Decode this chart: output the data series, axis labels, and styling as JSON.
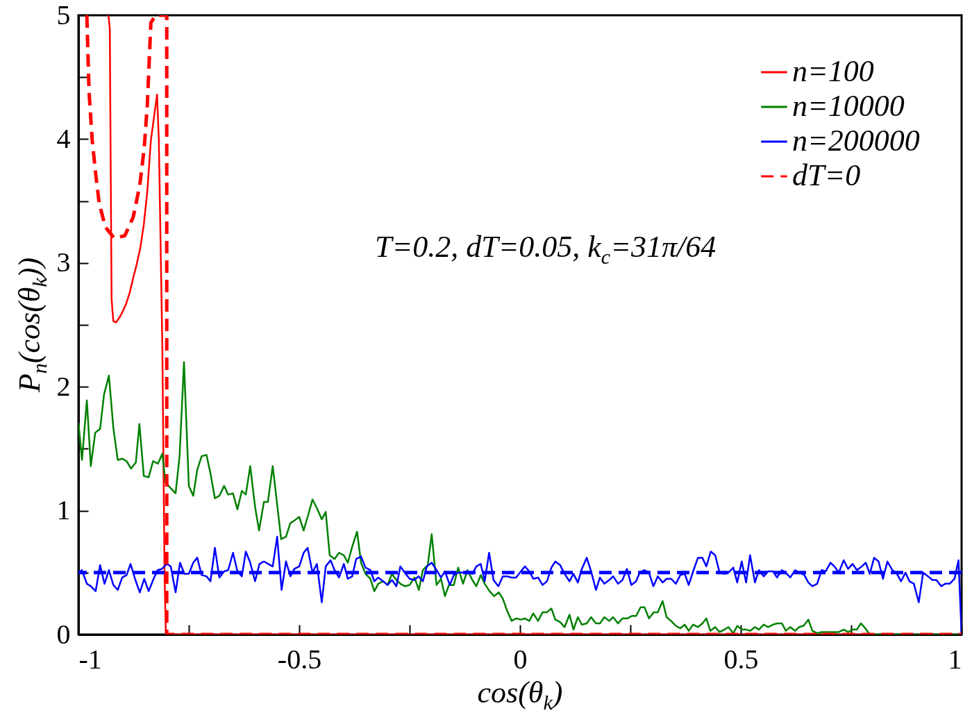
{
  "chart_data": {
    "type": "line",
    "xlabel": "cos(θ$_{k}$)",
    "ylabel": "P$_{n}$(cos(θ$_{k}$))",
    "annotations": [
      "T=0.2, dT=0.05, k$_{c}$=31π/64"
    ],
    "xlim": [
      -1,
      1
    ],
    "ylim": [
      0,
      5
    ],
    "xticks": [
      -1,
      {
        "value": -0.75,
        "label": null
      },
      -0.5,
      {
        "value": -0.25,
        "label": null
      },
      0,
      {
        "value": 0.25,
        "label": null
      },
      0.5,
      {
        "value": 0.75,
        "label": null
      },
      1
    ],
    "yticks": [
      0,
      {
        "value": 0.5,
        "label": null
      },
      1,
      {
        "value": 1.5,
        "label": null
      },
      2,
      {
        "value": 2.5,
        "label": null
      },
      3,
      {
        "value": 3.5,
        "label": null
      },
      4,
      {
        "value": 4.5,
        "label": null
      },
      5
    ],
    "legend": "top right",
    "ref_lines": [
      {
        "axis": "y",
        "value": 0.5,
        "color": "#0000ff",
        "line_style": "dashed"
      }
    ],
    "series": [
      {
        "name": "n=100",
        "color": "#ff0000",
        "line_style": "solid",
        "x": [
          -0.932,
          -0.929,
          -0.925,
          -0.921,
          -0.915,
          -0.907,
          -0.901,
          -0.892,
          -0.884,
          -0.876,
          -0.868,
          -0.86,
          -0.852,
          -0.844,
          -0.836,
          -0.822,
          -0.818,
          -0.81,
          -0.805,
          -0.802,
          1
        ],
        "values": [
          5,
          4.89,
          2.71,
          2.53,
          2.52,
          2.56,
          2.6,
          2.67,
          2.76,
          2.88,
          2.99,
          3.12,
          3.31,
          3.58,
          3.99,
          4.36,
          4.0,
          2.32,
          0.47,
          0,
          0
        ]
      },
      {
        "name": "n=10000",
        "color": "#008000",
        "line_style": "solid",
        "x": [
          -1.0,
          -0.992,
          -0.981,
          -0.972,
          -0.962,
          -0.951,
          -0.942,
          -0.931,
          -0.921,
          -0.911,
          -0.901,
          -0.891,
          -0.881,
          -0.87,
          -0.862,
          -0.852,
          -0.841,
          -0.831,
          -0.82,
          -0.81,
          -0.803,
          -0.791,
          -0.78,
          -0.771,
          -0.761,
          -0.75,
          -0.74,
          -0.731,
          -0.721,
          -0.71,
          -0.701,
          -0.691,
          -0.681,
          -0.67,
          -0.661,
          -0.65,
          -0.64,
          -0.63,
          -0.621,
          -0.611,
          -0.6,
          -0.591,
          -0.58,
          -0.571,
          -0.56,
          -0.55,
          -0.541,
          -0.53,
          -0.52,
          -0.511,
          -0.5,
          -0.49,
          -0.481,
          -0.47,
          -0.46,
          -0.449,
          -0.44,
          -0.431,
          -0.42,
          -0.41,
          -0.399,
          -0.39,
          -0.38,
          -0.369,
          -0.36,
          -0.35,
          -0.339,
          -0.33,
          -0.321,
          -0.31,
          -0.3,
          -0.29,
          -0.28,
          -0.271,
          -0.261,
          -0.25,
          -0.239,
          -0.229,
          -0.22,
          -0.209,
          -0.2,
          -0.189,
          -0.179,
          -0.17,
          -0.161,
          -0.15,
          -0.14,
          -0.129,
          -0.119,
          -0.108,
          -0.099,
          -0.089,
          -0.08,
          -0.069,
          -0.059,
          -0.048,
          -0.039,
          -0.029,
          -0.019,
          -0.009,
          0.002,
          0.011,
          0.021,
          0.03,
          0.041,
          0.051,
          0.061,
          0.071,
          0.08,
          0.091,
          0.101,
          0.112,
          0.121,
          0.131,
          0.14,
          0.151,
          0.161,
          0.172,
          0.181,
          0.191,
          0.202,
          0.211,
          0.222,
          0.232,
          0.243,
          0.253,
          0.263,
          0.273,
          0.282,
          0.292,
          0.303,
          0.312,
          0.323,
          0.332,
          0.342,
          0.353,
          0.363,
          0.373,
          0.382,
          0.392,
          0.403,
          0.413,
          0.422,
          0.431,
          0.442,
          0.452,
          0.463,
          0.472,
          0.483,
          0.492,
          0.502,
          0.512,
          0.521,
          0.532,
          0.541,
          0.552,
          0.562,
          0.573,
          0.582,
          0.593,
          0.602,
          0.612,
          0.623,
          0.632,
          0.642,
          0.653,
          0.662,
          0.673,
          0.683,
          0.722,
          0.733,
          0.743,
          0.753,
          0.763,
          0.772,
          0.782,
          0.792,
          1.0
        ],
        "values": [
          1.71,
          1.41,
          1.89,
          1.36,
          1.63,
          1.66,
          1.94,
          2.09,
          1.67,
          1.41,
          1.42,
          1.4,
          1.34,
          1.39,
          1.7,
          1.28,
          1.27,
          1.4,
          1.38,
          1.46,
          1.23,
          1.18,
          1.14,
          1.44,
          2.2,
          1.2,
          1.12,
          1.33,
          1.44,
          1.45,
          1.3,
          1.1,
          1.12,
          1.2,
          1.13,
          1.14,
          1.01,
          1.16,
          1.13,
          1.36,
          1.03,
          0.84,
          1.07,
          1.07,
          1.36,
          1.05,
          0.77,
          0.79,
          0.9,
          0.92,
          0.95,
          0.84,
          0.95,
          1.09,
          1.02,
          0.93,
          0.99,
          0.64,
          0.61,
          0.66,
          0.64,
          0.58,
          0.71,
          0.83,
          0.58,
          0.49,
          0.45,
          0.35,
          0.41,
          0.43,
          0.4,
          0.49,
          0.44,
          0.41,
          0.39,
          0.4,
          0.46,
          0.36,
          0.52,
          0.56,
          0.81,
          0.4,
          0.45,
          0.31,
          0.4,
          0.4,
          0.54,
          0.41,
          0.52,
          0.44,
          0.39,
          0.48,
          0.41,
          0.35,
          0.31,
          0.34,
          0.29,
          0.19,
          0.11,
          0.13,
          0.12,
          0.13,
          0.11,
          0.17,
          0.11,
          0.18,
          0.18,
          0.21,
          0.12,
          0.1,
          0.06,
          0.16,
          0.04,
          0.14,
          0.08,
          0.09,
          0.14,
          0.09,
          0.09,
          0.14,
          0.11,
          0.14,
          0.09,
          0.13,
          0.13,
          0.15,
          0.15,
          0.22,
          0.22,
          0.13,
          0.18,
          0.18,
          0.27,
          0.14,
          0.11,
          0.07,
          0.05,
          0.08,
          0.03,
          0.08,
          0.06,
          0.09,
          0.13,
          0.03,
          0.06,
          0.02,
          0.04,
          0.06,
          0.01,
          0.07,
          0.04,
          0.04,
          0.03,
          0.06,
          0.04,
          0.08,
          0.06,
          0.08,
          0.09,
          0.09,
          0.03,
          0.06,
          0.03,
          0.06,
          0.07,
          0.12,
          0.03,
          0.01,
          0.02,
          0.02,
          0.04,
          0.02,
          0.04,
          0.04,
          0.09,
          0.05,
          0,
          0
        ]
      },
      {
        "name": "n=200000",
        "color": "#0000ff",
        "line_style": "solid",
        "x": [
          -1.0,
          -0.992,
          -0.981,
          -0.972,
          -0.961,
          -0.951,
          -0.941,
          -0.931,
          -0.921,
          -0.911,
          -0.901,
          -0.891,
          -0.882,
          -0.871,
          -0.861,
          -0.851,
          -0.841,
          -0.831,
          -0.821,
          -0.811,
          -0.8,
          -0.791,
          -0.78,
          -0.77,
          -0.76,
          -0.75,
          -0.74,
          -0.731,
          -0.721,
          -0.71,
          -0.701,
          -0.691,
          -0.681,
          -0.67,
          -0.661,
          -0.65,
          -0.64,
          -0.63,
          -0.621,
          -0.611,
          -0.6,
          -0.59,
          -0.58,
          -0.57,
          -0.56,
          -0.55,
          -0.54,
          -0.53,
          -0.52,
          -0.511,
          -0.5,
          -0.49,
          -0.481,
          -0.47,
          -0.46,
          -0.449,
          -0.44,
          -0.429,
          -0.42,
          -0.41,
          -0.399,
          -0.39,
          -0.38,
          -0.371,
          -0.36,
          -0.35,
          -0.339,
          -0.33,
          -0.321,
          -0.31,
          -0.3,
          -0.29,
          -0.28,
          -0.271,
          -0.261,
          -0.25,
          -0.239,
          -0.23,
          -0.22,
          -0.211,
          -0.2,
          -0.189,
          -0.179,
          -0.17,
          -0.159,
          -0.15,
          -0.14,
          -0.129,
          -0.119,
          -0.108,
          -0.099,
          -0.089,
          -0.08,
          -0.07,
          -0.06,
          -0.049,
          -0.039,
          -0.029,
          -0.019,
          -0.009,
          0.002,
          0.011,
          0.021,
          0.03,
          0.041,
          0.051,
          0.061,
          0.071,
          0.08,
          0.091,
          0.101,
          0.112,
          0.121,
          0.131,
          0.14,
          0.151,
          0.161,
          0.172,
          0.181,
          0.191,
          0.202,
          0.211,
          0.222,
          0.232,
          0.242,
          0.252,
          0.263,
          0.271,
          0.282,
          0.292,
          0.302,
          0.312,
          0.323,
          0.332,
          0.342,
          0.353,
          0.363,
          0.373,
          0.382,
          0.392,
          0.403,
          0.413,
          0.422,
          0.432,
          0.442,
          0.452,
          0.463,
          0.472,
          0.483,
          0.492,
          0.502,
          0.512,
          0.521,
          0.532,
          0.541,
          0.552,
          0.562,
          0.573,
          0.582,
          0.593,
          0.602,
          0.612,
          0.623,
          0.633,
          0.644,
          0.653,
          0.662,
          0.673,
          0.683,
          0.692,
          0.703,
          0.712,
          0.722,
          0.733,
          0.743,
          0.753,
          0.763,
          0.774,
          0.783,
          0.792,
          0.802,
          0.812,
          0.822,
          0.832,
          0.843,
          0.852,
          0.863,
          0.873,
          0.882,
          0.892,
          0.903,
          0.913,
          0.924,
          0.934,
          0.943,
          0.954,
          0.963,
          0.973,
          0.984,
          0.993,
          1.0
        ],
        "values": [
          0.5,
          0.52,
          0.41,
          0.39,
          0.35,
          0.56,
          0.41,
          0.52,
          0.4,
          0.36,
          0.46,
          0.48,
          0.57,
          0.44,
          0.34,
          0.45,
          0.35,
          0.44,
          0.52,
          0.53,
          0.57,
          0.55,
          0.34,
          0.58,
          0.49,
          0.49,
          0.58,
          0.62,
          0.48,
          0.47,
          0.43,
          0.7,
          0.46,
          0.51,
          0.52,
          0.66,
          0.51,
          0.47,
          0.67,
          0.58,
          0.43,
          0.57,
          0.59,
          0.57,
          0.55,
          0.79,
          0.36,
          0.59,
          0.47,
          0.53,
          0.55,
          0.66,
          0.7,
          0.5,
          0.57,
          0.26,
          0.55,
          0.6,
          0.52,
          0.46,
          0.57,
          0.45,
          0.47,
          0.61,
          0.63,
          0.54,
          0.52,
          0.43,
          0.46,
          0.43,
          0.4,
          0.44,
          0.39,
          0.55,
          0.5,
          0.45,
          0.44,
          0.47,
          0.43,
          0.55,
          0.58,
          0.52,
          0.46,
          0.51,
          0.4,
          0.48,
          0.5,
          0.5,
          0.51,
          0.49,
          0.55,
          0.57,
          0.43,
          0.66,
          0.44,
          0.39,
          0.47,
          0.47,
          0.46,
          0.46,
          0.51,
          0.55,
          0.51,
          0.45,
          0.46,
          0.4,
          0.43,
          0.54,
          0.59,
          0.56,
          0.49,
          0.43,
          0.49,
          0.42,
          0.53,
          0.62,
          0.51,
          0.36,
          0.46,
          0.41,
          0.44,
          0.47,
          0.41,
          0.44,
          0.53,
          0.4,
          0.43,
          0.5,
          0.52,
          0.5,
          0.39,
          0.47,
          0.42,
          0.45,
          0.45,
          0.41,
          0.48,
          0.49,
          0.4,
          0.51,
          0.62,
          0.62,
          0.55,
          0.67,
          0.64,
          0.5,
          0.49,
          0.5,
          0.54,
          0.42,
          0.59,
          0.42,
          0.64,
          0.42,
          0.52,
          0.47,
          0.51,
          0.51,
          0.46,
          0.52,
          0.5,
          0.46,
          0.52,
          0.5,
          0.48,
          0.42,
          0.39,
          0.41,
          0.52,
          0.51,
          0.58,
          0.55,
          0.5,
          0.6,
          0.53,
          0.57,
          0.52,
          0.55,
          0.58,
          0.49,
          0.62,
          0.59,
          0.45,
          0.59,
          0.52,
          0.5,
          0.43,
          0.5,
          0.43,
          0.41,
          0.26,
          0.5,
          0.47,
          0.44,
          0.44,
          0.39,
          0.41,
          0.41,
          0.45,
          0.6,
          0
        ]
      },
      {
        "name": "dT=0",
        "color": "#ff0000",
        "line_style": "dashed",
        "x": [
          -0.981,
          -0.976,
          -0.969,
          -0.961,
          -0.953,
          -0.939,
          -0.919,
          -0.895,
          -0.876,
          -0.861,
          -0.851,
          -0.844,
          -0.836,
          -0.825,
          -0.8,
          -0.8,
          1
        ],
        "values": [
          5,
          4.38,
          4.0,
          3.72,
          3.48,
          3.29,
          3.2,
          3.22,
          3.37,
          3.63,
          3.93,
          4.28,
          4.94,
          5,
          5,
          0,
          0
        ]
      }
    ]
  }
}
